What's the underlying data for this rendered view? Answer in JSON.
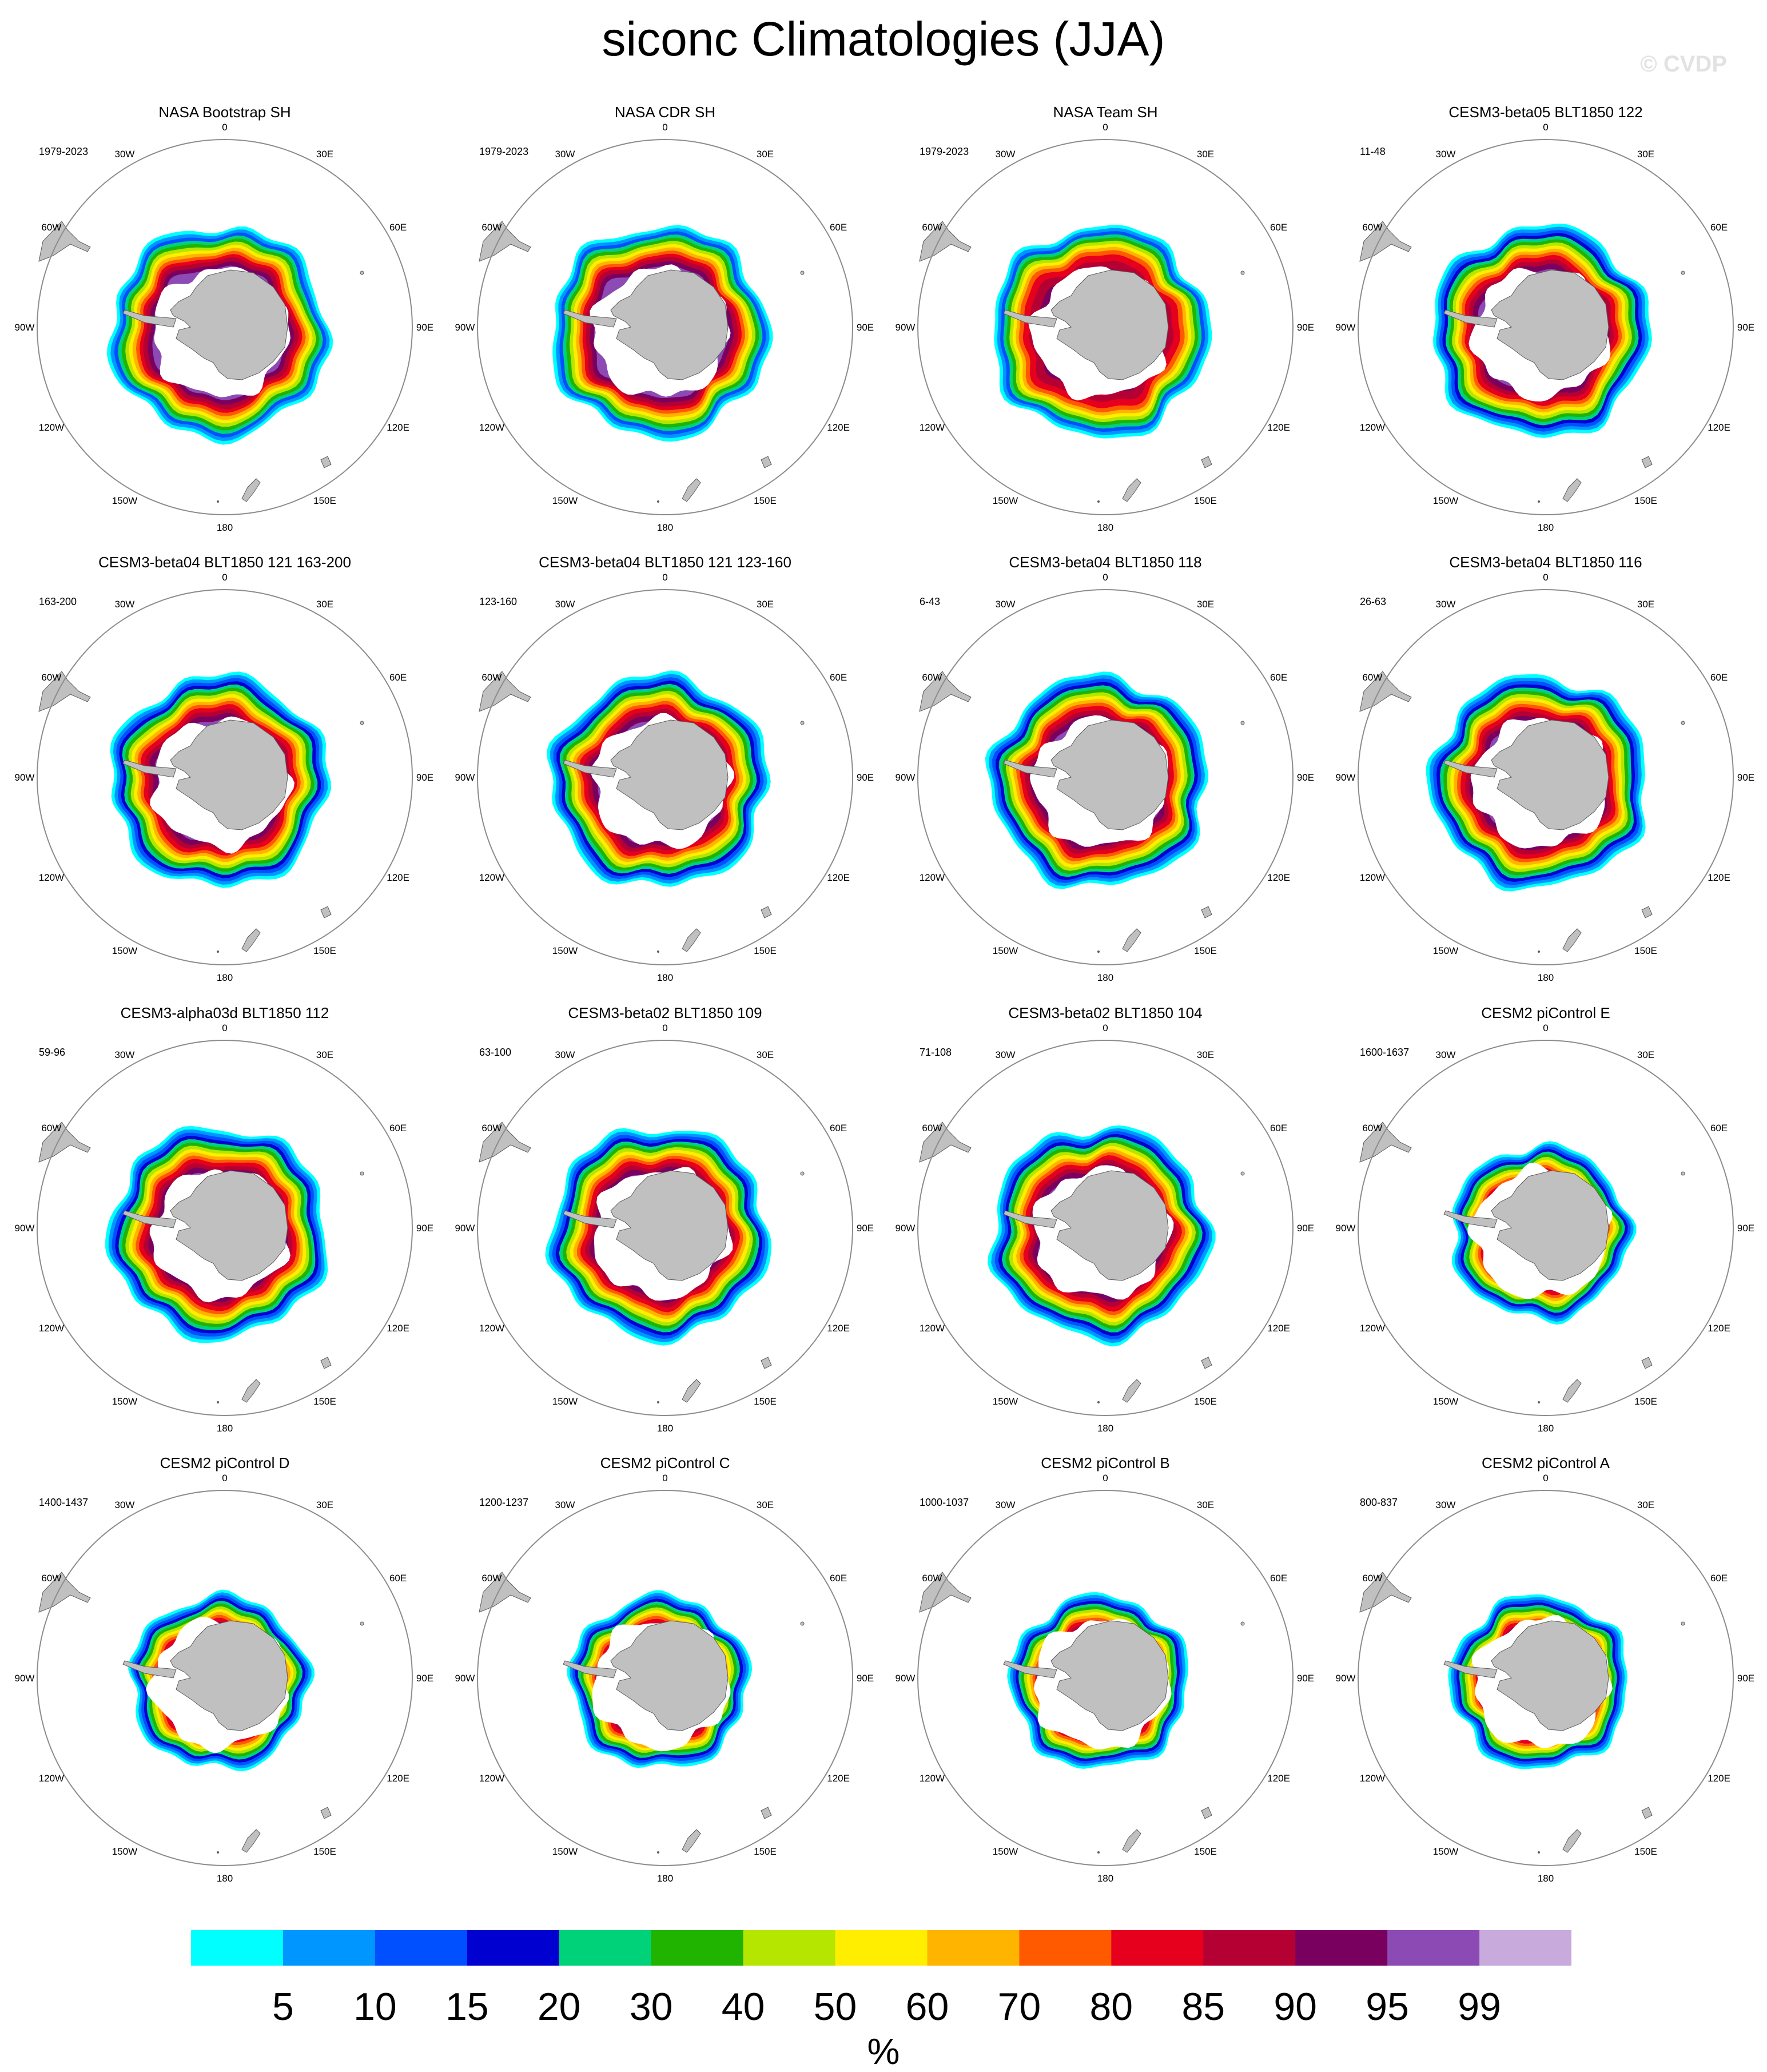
{
  "title": "siconc Climatologies (JJA)",
  "watermark": "© CVDP",
  "units": "%",
  "colors": {
    "land": "#c0c0c0",
    "coast": "#5a5a5a",
    "circle": "#8c8c8c",
    "levels": [
      "#00ffff",
      "#0096ff",
      "#0050ff",
      "#0000d0",
      "#00d27a",
      "#20b400",
      "#b4e600",
      "#ffee00",
      "#ffb400",
      "#ff5a00",
      "#e6001e",
      "#b40032",
      "#7a0060",
      "#8c4bb4",
      "#c8aadc"
    ]
  },
  "colorbar": {
    "ticks": [
      "5",
      "10",
      "15",
      "20",
      "30",
      "40",
      "50",
      "60",
      "70",
      "80",
      "85",
      "90",
      "95",
      "99"
    ]
  },
  "map": {
    "projection": "south polar stereographic",
    "lon_labels": [
      "0",
      "30E",
      "60E",
      "90E",
      "120E",
      "150E",
      "180",
      "150W",
      "120W",
      "90W",
      "60W",
      "30W"
    ]
  },
  "panels": [
    {
      "title": "NASA Bootstrap SH",
      "years": "1979-2023",
      "style": "obs"
    },
    {
      "title": "NASA CDR SH",
      "years": "1979-2023",
      "style": "obs"
    },
    {
      "title": "NASA Team SH",
      "years": "1979-2023",
      "style": "team"
    },
    {
      "title": "CESM3-beta05 BLT1850 122",
      "years": "11-48",
      "style": "model"
    },
    {
      "title": "CESM3-beta04 BLT1850 121 163-200",
      "years": "163-200",
      "style": "model"
    },
    {
      "title": "CESM3-beta04 BLT1850 121 123-160",
      "years": "123-160",
      "style": "model"
    },
    {
      "title": "CESM3-beta04 BLT1850 118",
      "years": "6-43",
      "style": "model"
    },
    {
      "title": "CESM3-beta04 BLT1850 116",
      "years": "26-63",
      "style": "model"
    },
    {
      "title": "CESM3-alpha03d BLT1850 112",
      "years": "59-96",
      "style": "model"
    },
    {
      "title": "CESM3-beta02 BLT1850 109",
      "years": "63-100",
      "style": "model"
    },
    {
      "title": "CESM3-beta02 BLT1850 104",
      "years": "71-108",
      "style": "model"
    },
    {
      "title": "CESM2 piControl E",
      "years": "1600-1637",
      "style": "cesm2"
    },
    {
      "title": "CESM2 piControl D",
      "years": "1400-1437",
      "style": "cesm2"
    },
    {
      "title": "CESM2 piControl C",
      "years": "1200-1237",
      "style": "cesm2"
    },
    {
      "title": "CESM2 piControl B",
      "years": "1000-1037",
      "style": "cesm2"
    },
    {
      "title": "CESM2 piControl A",
      "years": "800-837",
      "style": "cesm2"
    }
  ]
}
